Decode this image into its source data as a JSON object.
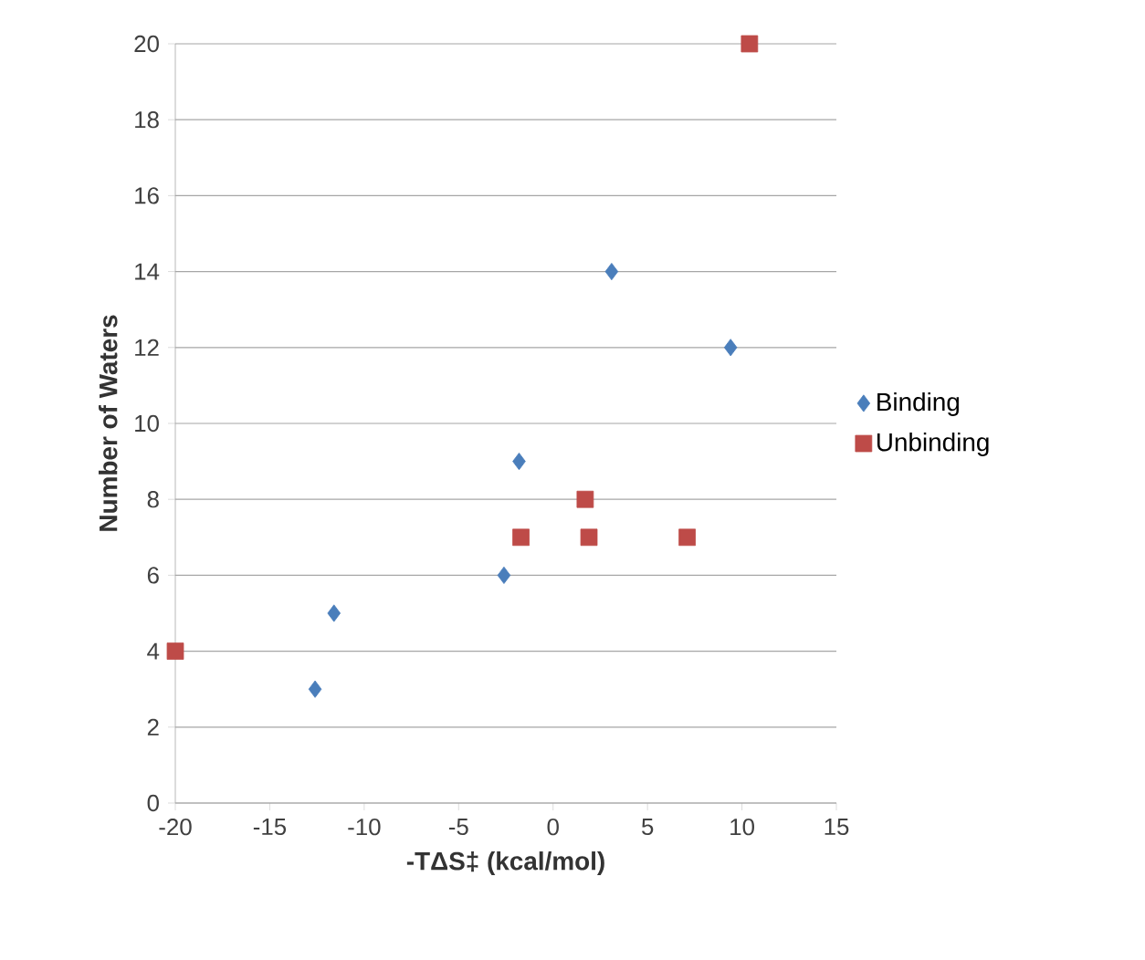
{
  "chart_data": {
    "type": "scatter",
    "xlabel": "-TΔS‡ (kcal/mol)",
    "ylabel": "Number of Waters",
    "xlim": [
      -20,
      15
    ],
    "xticks": [
      -20,
      -15,
      -10,
      -5,
      0,
      5,
      10,
      15
    ],
    "ylim": [
      0,
      20
    ],
    "yticks": [
      0,
      2,
      4,
      6,
      8,
      10,
      12,
      14,
      16,
      18,
      20
    ],
    "grid": "y",
    "legend": "right",
    "series": [
      {
        "name": "Binding",
        "color": "#4a7ebb",
        "marker": "diamond",
        "x": [
          -12.6,
          -11.6,
          -2.6,
          -1.8,
          3.1,
          9.4
        ],
        "values": [
          3,
          5,
          6,
          9,
          14,
          12
        ]
      },
      {
        "name": "Unbinding",
        "color": "#be4b48",
        "marker": "square",
        "x": [
          -20,
          -1.7,
          1.7,
          1.9,
          7.1,
          10.4
        ],
        "values": [
          4,
          7,
          8,
          7,
          7,
          20
        ]
      }
    ]
  }
}
